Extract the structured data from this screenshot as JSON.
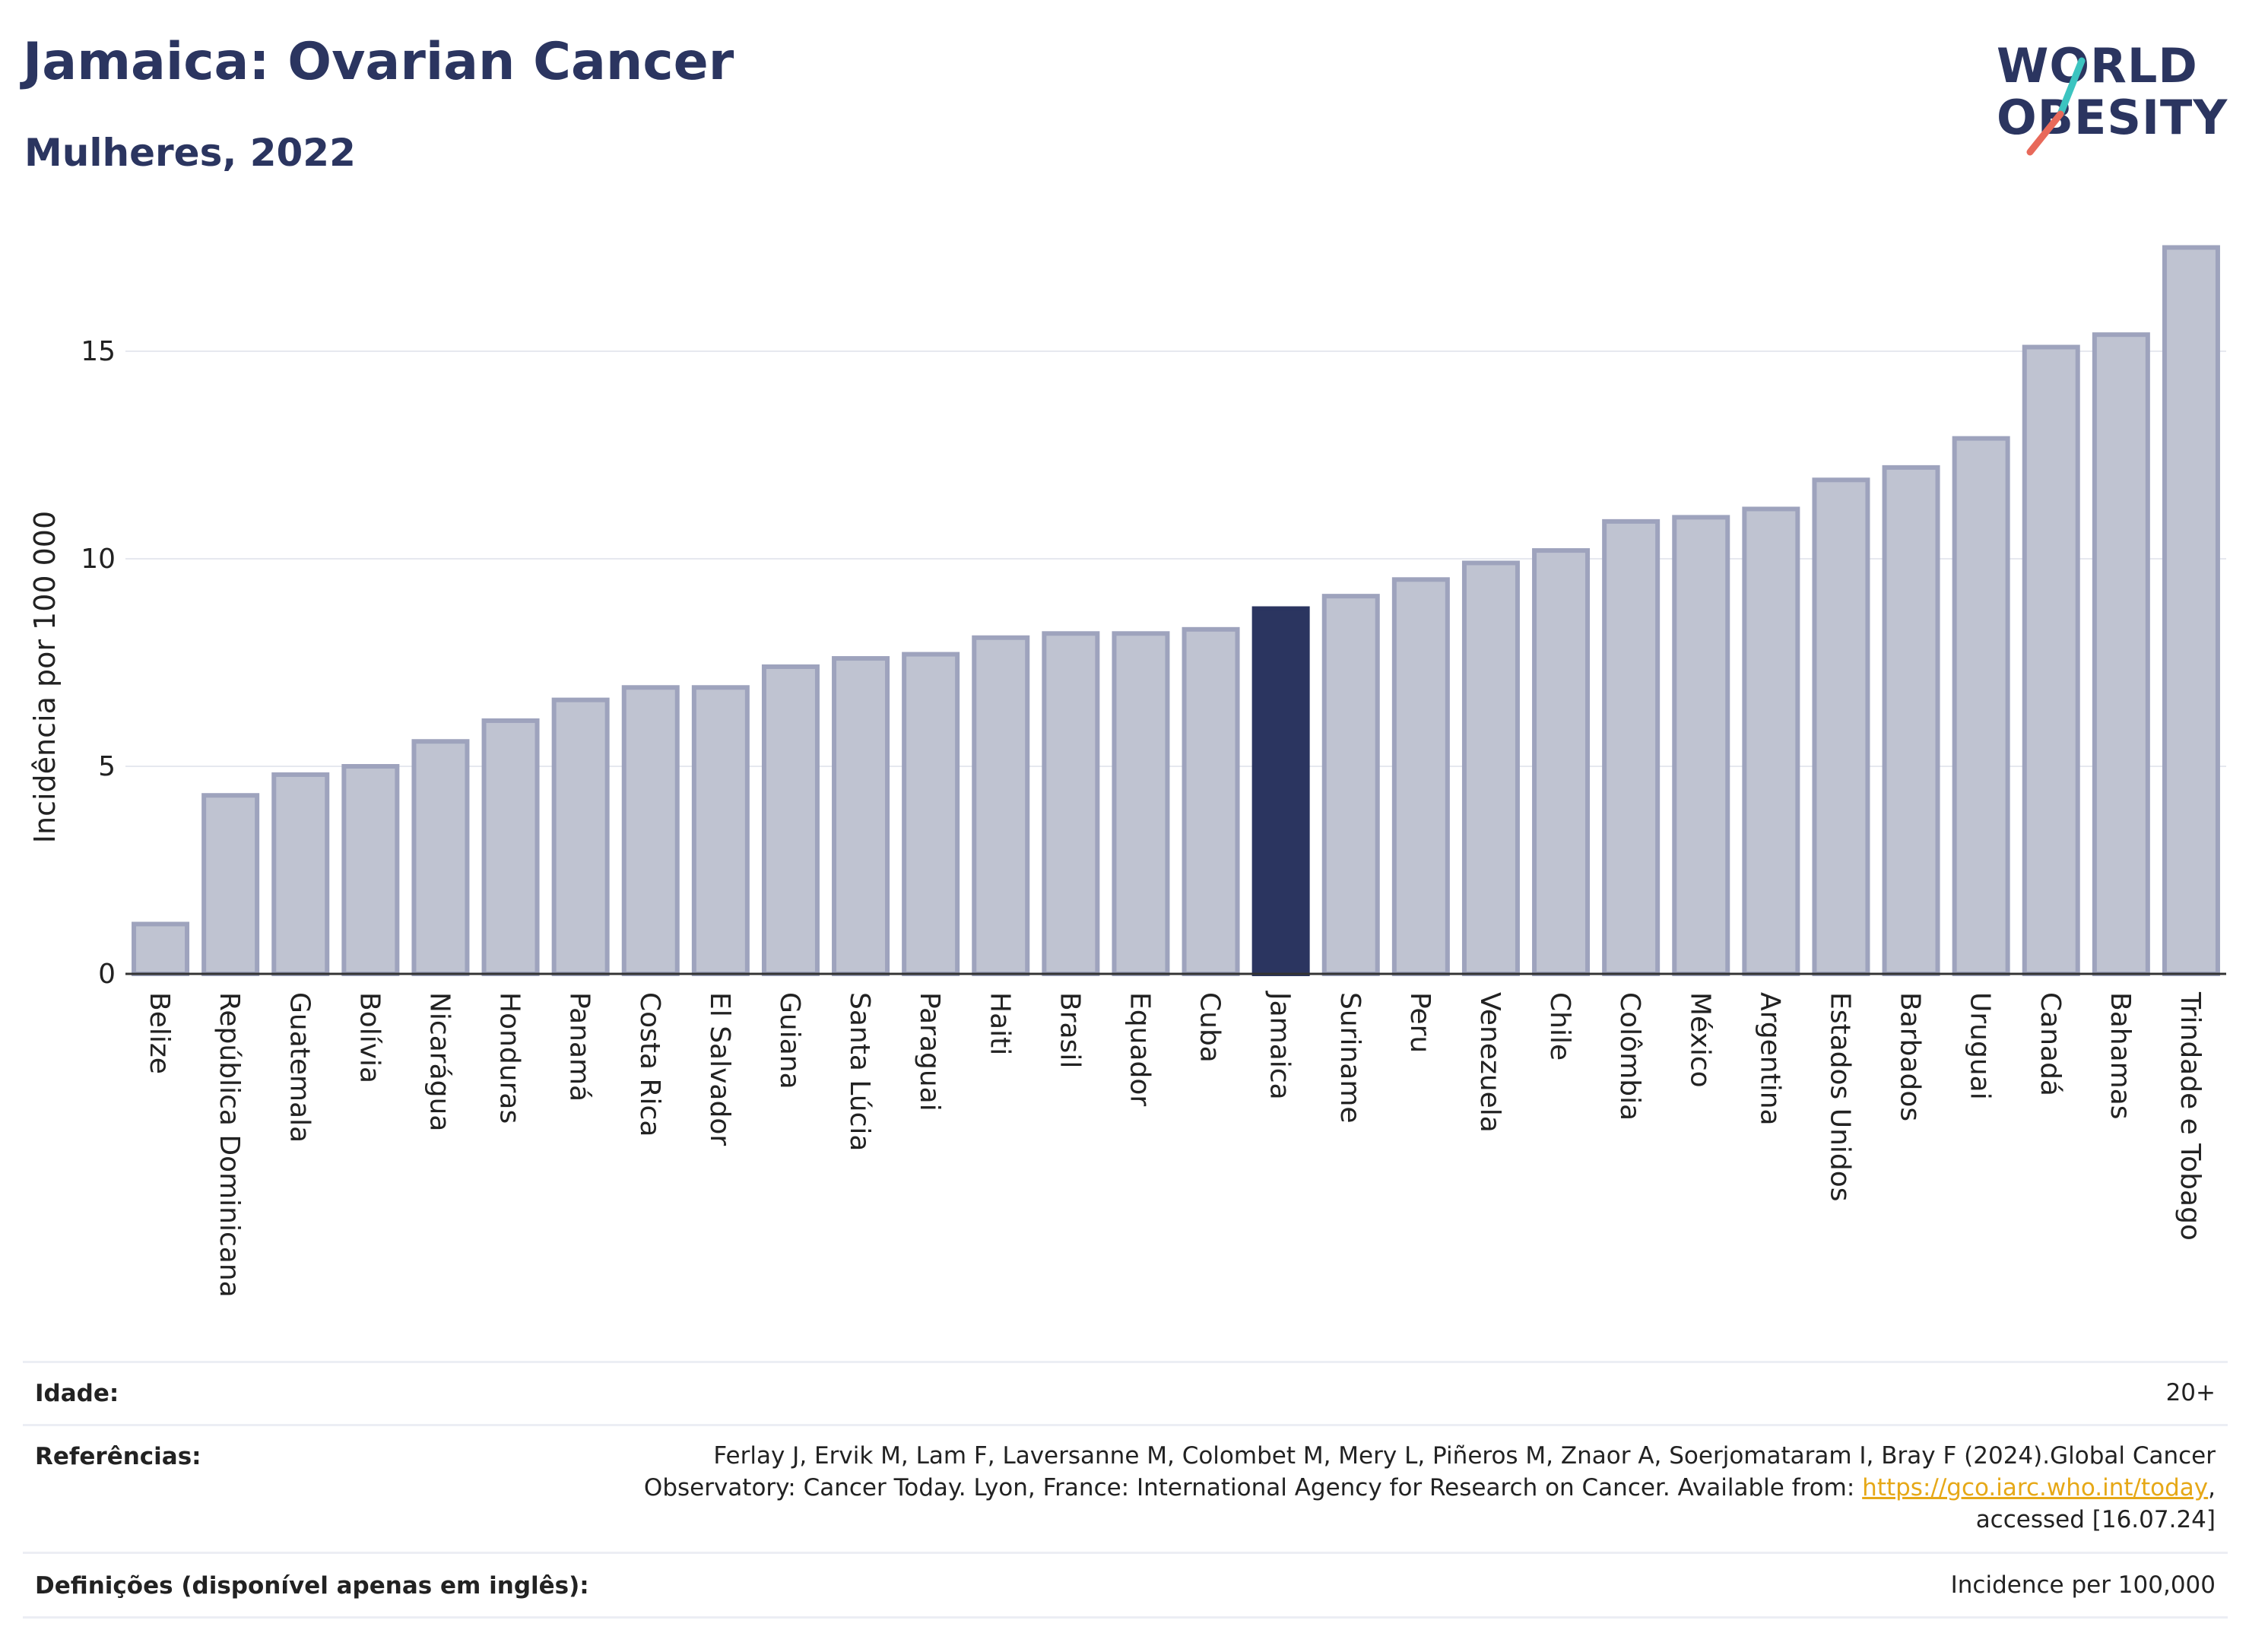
{
  "header": {
    "title": "Jamaica: Ovarian Cancer",
    "subtitle": "Mulheres, 2022"
  },
  "logo": {
    "line1": "WORLD",
    "line2": "OBESITY",
    "slash_colors": [
      "#3cc4c0",
      "#e8695a"
    ]
  },
  "colors": {
    "bar_default": "#bfc3d1",
    "bar_stroke": "#9ea3bd",
    "bar_highlight": "#2b3560",
    "title": "#2b3560",
    "link": "#e6a817"
  },
  "chart_data": {
    "type": "bar",
    "title": "Jamaica: Ovarian Cancer",
    "subtitle": "Mulheres, 2022",
    "xlabel": "",
    "ylabel": "Incidência por 100 000",
    "ylim": [
      0,
      17.6
    ],
    "yticks": [
      0,
      5,
      10,
      15
    ],
    "grid": true,
    "highlight": "Jamaica",
    "categories": [
      "Belize",
      "República Dominicana",
      "Guatemala",
      "Bolívia",
      "Nicarágua",
      "Honduras",
      "Panamá",
      "Costa Rica",
      "El Salvador",
      "Guiana",
      "Santa Lúcia",
      "Paraguai",
      "Haiti",
      "Brasil",
      "Equador",
      "Cuba",
      "Jamaica",
      "Suriname",
      "Peru",
      "Venezuela",
      "Chile",
      "Colômbia",
      "México",
      "Argentina",
      "Estados Unidos",
      "Barbados",
      "Uruguai",
      "Canadá",
      "Bahamas",
      "Trindade e Tobago"
    ],
    "values": [
      1.2,
      4.3,
      4.8,
      5.0,
      5.6,
      6.1,
      6.6,
      6.9,
      6.9,
      7.4,
      7.6,
      7.7,
      8.1,
      8.2,
      8.2,
      8.3,
      8.8,
      9.1,
      9.5,
      9.9,
      10.2,
      10.9,
      11.0,
      11.2,
      11.9,
      12.2,
      12.9,
      15.1,
      15.4,
      17.5
    ]
  },
  "footer": {
    "age_label": "Idade:",
    "age_value": "20+",
    "refs_label": "Referências:",
    "refs_line1": "Ferlay J, Ervik M, Lam F, Laversanne M, Colombet M, Mery L, Piñeros M, Znaor A, Soerjomataram I, Bray F (2024).Global Cancer",
    "refs_line2_prefix": "Observatory: Cancer Today. Lyon, France: International Agency for Research on Cancer. Available from: ",
    "refs_link": "https://gco.iarc.who.int/today",
    "refs_line2_suffix": ",",
    "refs_line3": "accessed [16.07.24]",
    "defs_label": "Definições (disponível apenas em inglês):",
    "defs_value": "Incidence per 100,000"
  }
}
